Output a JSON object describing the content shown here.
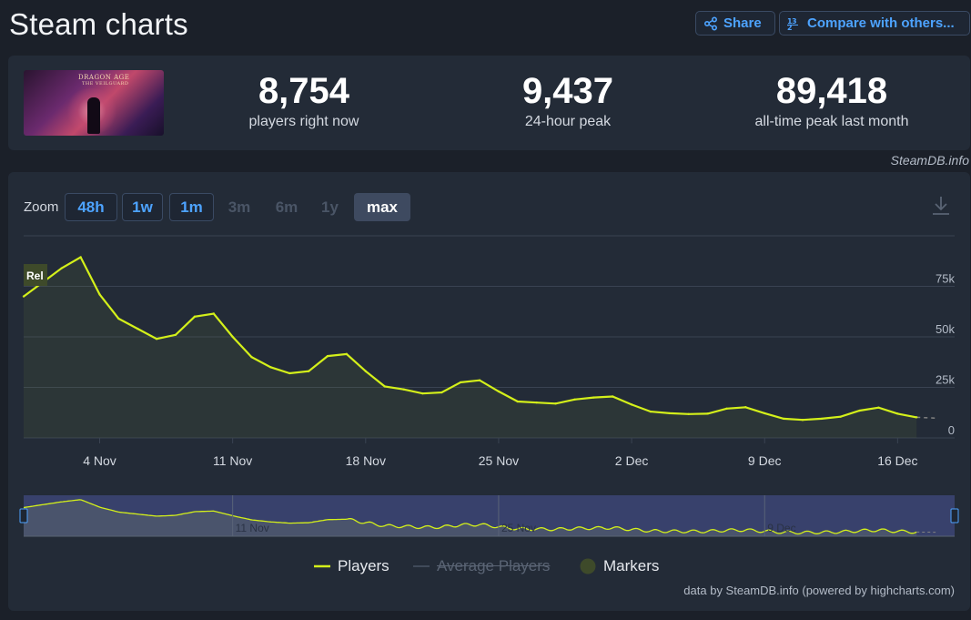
{
  "header": {
    "title": "Steam charts",
    "share_label": "Share",
    "compare_label": "Compare with others..."
  },
  "stats": {
    "players_now": "8,754",
    "players_now_label": "players right now",
    "peak_24h": "9,437",
    "peak_24h_label": "24-hour peak",
    "alltime_peak": "89,418",
    "alltime_peak_label": "all-time peak last month"
  },
  "game_image": {
    "title_text": "DRAGON AGE",
    "subtitle_text": "THE VEILGUARD"
  },
  "credit_top": "SteamDB.info",
  "zoom": {
    "label": "Zoom",
    "buttons": [
      "48h",
      "1w",
      "1m",
      "3m",
      "6m",
      "1y",
      "max"
    ],
    "enabled": [
      true,
      true,
      true,
      false,
      false,
      false,
      true
    ],
    "selected": "max"
  },
  "legend": {
    "players": "Players",
    "average_players": "Average Players",
    "markers": "Markers"
  },
  "credit_bottom": "data by SteamDB.info (powered by highcharts.com)",
  "colors": {
    "series": "#d4f01a",
    "accent": "#4da3ff",
    "marker": "#3e4a2a",
    "navigator_bg": "#3c4575"
  },
  "chart_data": {
    "type": "line",
    "marker": {
      "label": "Rel",
      "day": 0
    },
    "x_ticks": [
      {
        "label": "4 Nov",
        "day": 4
      },
      {
        "label": "11 Nov",
        "day": 11
      },
      {
        "label": "18 Nov",
        "day": 18
      },
      {
        "label": "25 Nov",
        "day": 25
      },
      {
        "label": "2 Dec",
        "day": 32
      },
      {
        "label": "9 Dec",
        "day": 39
      },
      {
        "label": "16 Dec",
        "day": 46
      }
    ],
    "y_ticks": [
      {
        "label": "0",
        "value": 0
      },
      {
        "label": "25k",
        "value": 25000
      },
      {
        "label": "50k",
        "value": 50000
      },
      {
        "label": "75k",
        "value": 75000
      }
    ],
    "ylim": [
      0,
      100000
    ],
    "xlim": [
      0,
      49
    ],
    "series": [
      {
        "name": "Players",
        "x": [
          0,
          1,
          2,
          3,
          4,
          5,
          6,
          7,
          8,
          9,
          10,
          11,
          12,
          13,
          14,
          15,
          16,
          17,
          18,
          19,
          20,
          21,
          22,
          23,
          24,
          25,
          26,
          27,
          28,
          29,
          30,
          31,
          32,
          33,
          34,
          35,
          36,
          37,
          38,
          39,
          40,
          41,
          42,
          43,
          44,
          45,
          46,
          47
        ],
        "values": [
          70000,
          77000,
          84000,
          89400,
          71000,
          59000,
          54000,
          49000,
          51000,
          60000,
          61500,
          50000,
          40000,
          35000,
          32000,
          33000,
          40500,
          41500,
          33000,
          25500,
          24000,
          22000,
          22500,
          27500,
          28500,
          23000,
          18000,
          17500,
          17000,
          19000,
          20000,
          20500,
          16500,
          13000,
          12200,
          11800,
          12000,
          14500,
          15200,
          12200,
          9500,
          8900,
          9500,
          10500,
          13500,
          15000,
          12000,
          10200
        ]
      }
    ],
    "forecast_tail": {
      "x": [
        47,
        48
      ],
      "values": [
        10200,
        9800
      ]
    }
  }
}
